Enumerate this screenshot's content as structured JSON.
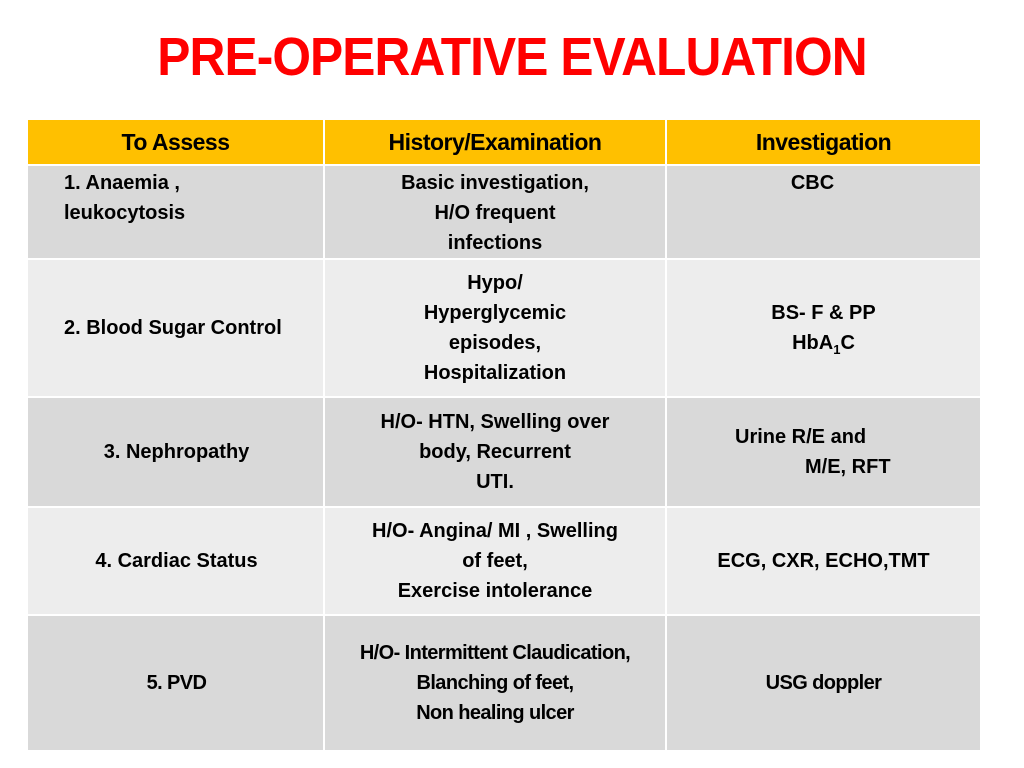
{
  "title": "PRE-OPERATIVE EVALUATION",
  "colors": {
    "title": "#ff0000",
    "header": "#ffc000",
    "row_dark": "#d9d9d9",
    "row_light": "#ededed"
  },
  "table": {
    "headers": [
      "To Assess",
      "History/Examination",
      "Investigation"
    ],
    "rows": [
      {
        "assess": [
          "1. Anaemia ,",
          "leukocytosis"
        ],
        "history": [
          "Basic investigation,",
          "H/O frequent",
          "infections"
        ],
        "investigation": [
          "CBC"
        ]
      },
      {
        "assess": [
          "2. Blood Sugar Control"
        ],
        "history": [
          "Hypo/",
          "Hyperglycemic",
          "episodes,",
          "Hospitalization"
        ],
        "investigation": [
          "BS- F & PP"
        ],
        "investigation_hba": {
          "base": "HbA",
          "sub": "1",
          "tail": "C"
        }
      },
      {
        "assess": [
          "3. Nephropathy"
        ],
        "history": [
          "H/O- HTN, Swelling over",
          "body,  Recurrent",
          "UTI."
        ],
        "investigation": [
          "Urine R/E and",
          "M/E,  RFT"
        ]
      },
      {
        "assess": [
          "4. Cardiac Status"
        ],
        "history": [
          "H/O- Angina/ MI , Swelling",
          "of  feet,",
          "Exercise intolerance"
        ],
        "investigation": [
          "ECG, CXR, ECHO,TMT"
        ]
      },
      {
        "assess": [
          "5. PVD"
        ],
        "history": [
          "H/O- Intermittent Claudication,",
          "Blanching of feet,",
          "Non healing ulcer"
        ],
        "investigation": [
          "USG doppler"
        ]
      }
    ]
  }
}
